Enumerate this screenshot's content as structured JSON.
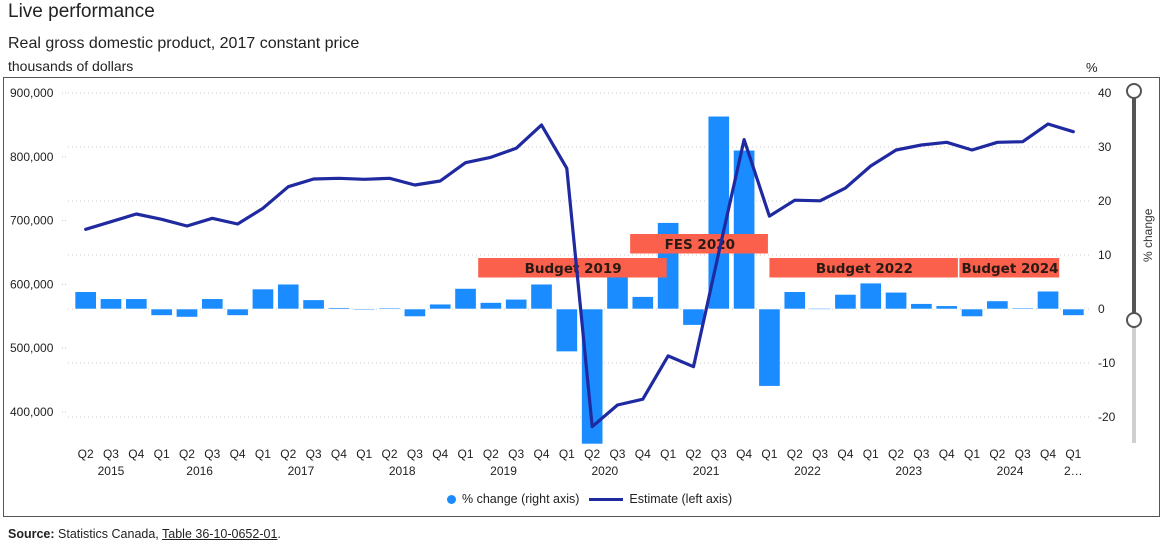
{
  "header": {
    "title": "Live performance",
    "subtitle": "Real gross domestic product, 2017 constant price",
    "left_unit": "thousands of dollars",
    "right_unit": "%"
  },
  "legend": {
    "bar_label": "% change (right axis)",
    "line_label": "Estimate (left axis)"
  },
  "slider": {
    "label": "% change",
    "range_top": 40,
    "range_bottom": 0
  },
  "source": {
    "prefix": "Source:",
    "text": "Statistics Canada,",
    "link": "Table 36-10-0652-01",
    "suffix": "."
  },
  "colors": {
    "bar": "#1a8cff",
    "line": "#1f2aa0",
    "band": "#fb604d"
  },
  "chart_data": {
    "type": "bar+line",
    "title": "Real gross domestic product, 2017 constant price",
    "xlabel": "",
    "ylabel_left": "thousands of dollars",
    "ylabel_right": "%",
    "ylim_left": [
      350000,
      900000
    ],
    "ylim_right": [
      -25,
      40
    ],
    "yticks_left": [
      400000,
      500000,
      600000,
      700000,
      800000,
      900000
    ],
    "yticks_left_labels": [
      "400,000",
      "500,000",
      "600,000",
      "700,000",
      "800,000",
      "900,000"
    ],
    "yticks_right": [
      -20,
      -10,
      0,
      10,
      20,
      30,
      40
    ],
    "grid": "dotted horizontal",
    "legend_position": "bottom-center",
    "categories": [
      "Q2",
      "Q3",
      "Q4",
      "Q1",
      "Q2",
      "Q3",
      "Q4",
      "Q1",
      "Q2",
      "Q3",
      "Q4",
      "Q1",
      "Q2",
      "Q3",
      "Q4",
      "Q1",
      "Q2",
      "Q3",
      "Q4",
      "Q1",
      "Q2",
      "Q3",
      "Q4",
      "Q1",
      "Q2",
      "Q3",
      "Q4",
      "Q1",
      "Q2",
      "Q3",
      "Q4",
      "Q1",
      "Q2",
      "Q3",
      "Q4",
      "Q1",
      "Q2",
      "Q3",
      "Q4",
      "Q1"
    ],
    "year_groups": [
      {
        "label": "2015",
        "start": 0,
        "count": 3
      },
      {
        "label": "2016",
        "start": 3,
        "count": 4
      },
      {
        "label": "2017",
        "start": 7,
        "count": 4
      },
      {
        "label": "2018",
        "start": 11,
        "count": 4
      },
      {
        "label": "2019",
        "start": 15,
        "count": 4
      },
      {
        "label": "2020",
        "start": 19,
        "count": 4
      },
      {
        "label": "2021",
        "start": 23,
        "count": 4
      },
      {
        "label": "2022",
        "start": 27,
        "count": 4
      },
      {
        "label": "2023",
        "start": 31,
        "count": 4
      },
      {
        "label": "2024",
        "start": 35,
        "count": 4
      },
      {
        "label": "2…",
        "start": 39,
        "count": 1
      }
    ],
    "series": [
      {
        "name": "% change (right axis)",
        "type": "bar",
        "axis": "right",
        "values": [
          3.2,
          1.9,
          1.9,
          -1.2,
          -1.5,
          1.9,
          -1.2,
          3.7,
          4.6,
          1.7,
          0.25,
          -0.1,
          0.2,
          -1.4,
          0.9,
          3.8,
          1.2,
          1.8,
          4.6,
          -7.9,
          -25.0,
          7.0,
          2.3,
          16.0,
          -3.0,
          35.7,
          29.4,
          -14.3,
          3.2,
          0.1,
          2.7,
          4.8,
          3.1,
          1.0,
          0.6,
          -1.4,
          1.5,
          0.2,
          3.3,
          -1.2
        ]
      },
      {
        "name": "Estimate (left axis)",
        "type": "line",
        "axis": "left",
        "values": [
          686400,
          698300,
          710300,
          702000,
          691500,
          703600,
          694700,
          719300,
          753100,
          765200,
          766300,
          764700,
          766300,
          755800,
          762100,
          790800,
          799200,
          813300,
          849800,
          782000,
          377000,
          411000,
          420000,
          488000,
          471000,
          650000,
          827000,
          707000,
          732000,
          731000,
          751000,
          785600,
          810700,
          818500,
          822700,
          810700,
          822700,
          823700,
          851400,
          839300
        ]
      }
    ],
    "annotations": [
      {
        "label": "Budget 2019",
        "start": 16,
        "end": 23.5,
        "row": 1
      },
      {
        "label": "FES 2020",
        "start": 22,
        "end": 27.5,
        "row": 2
      },
      {
        "label": "Budget 2022",
        "start": 27.5,
        "end": 35,
        "row": 1
      },
      {
        "label": "Budget 2024",
        "start": 35,
        "end": 39,
        "row": 1
      }
    ]
  }
}
